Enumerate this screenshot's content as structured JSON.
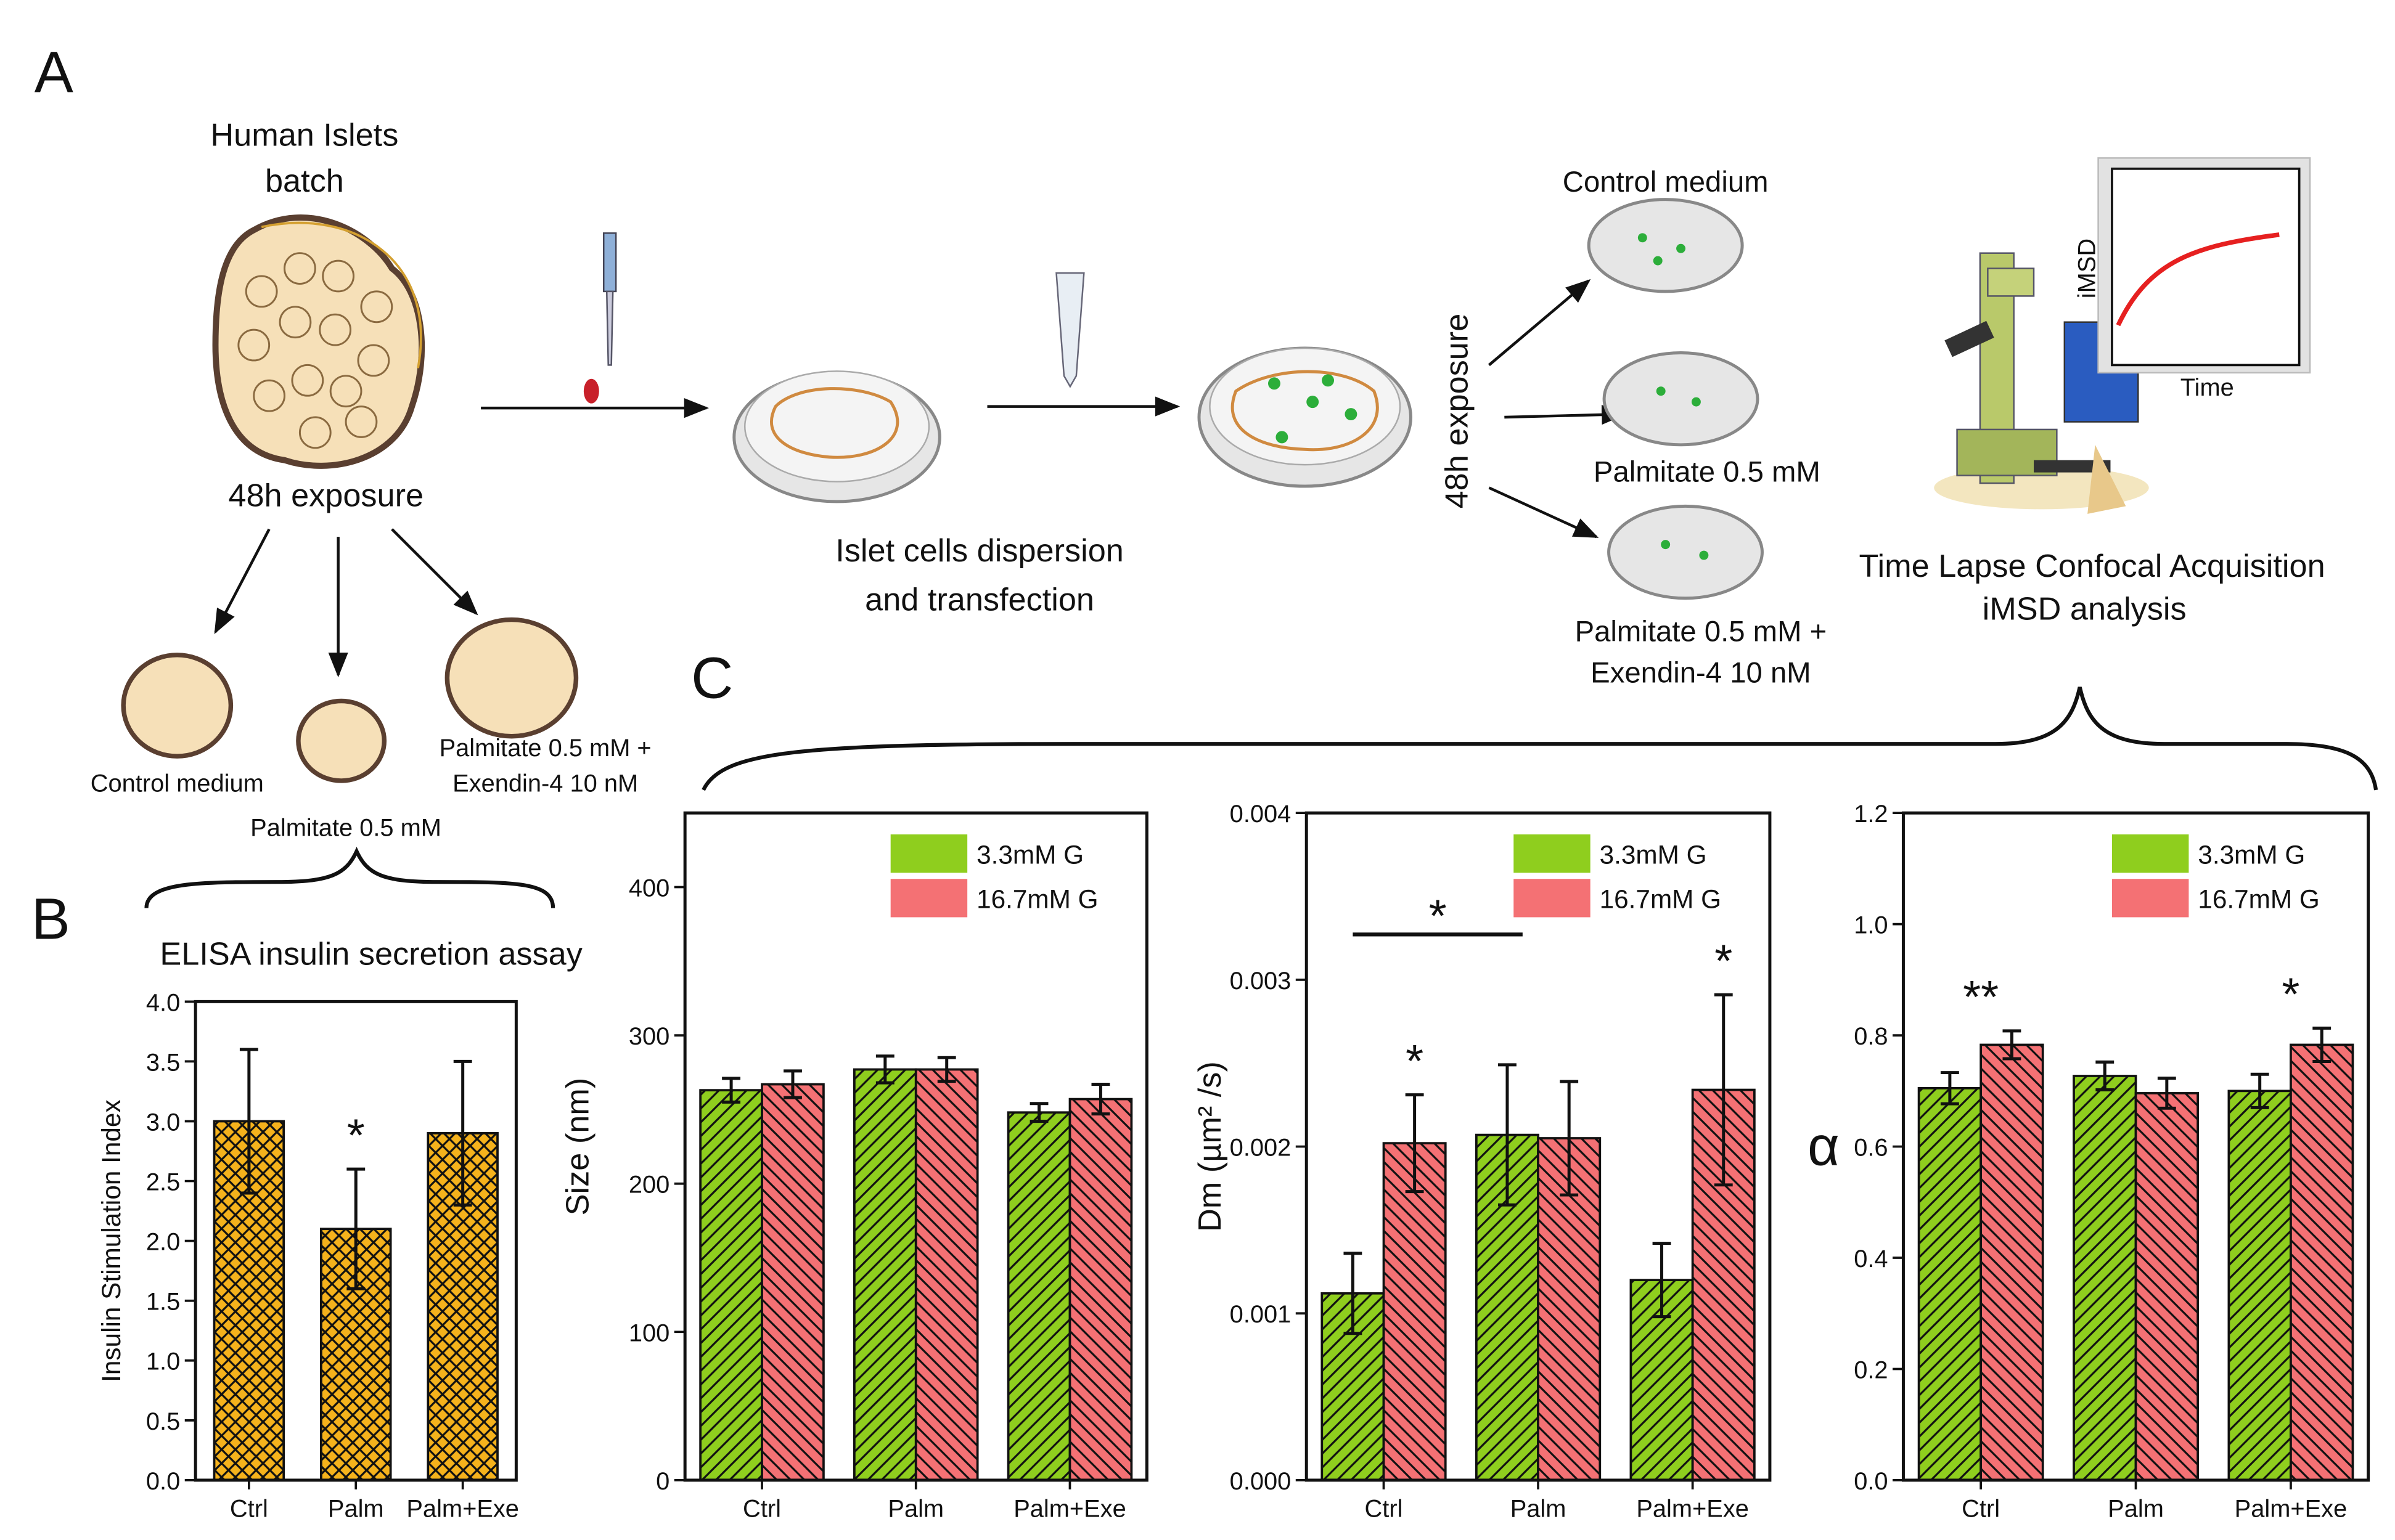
{
  "panel_labels": [
    "A",
    "B",
    "C"
  ],
  "diagram": {
    "batch_title": [
      "Human Islets",
      "batch"
    ],
    "exposure": "48h exposure",
    "islet_control": "Control medium",
    "islet_palm": "Palmitate 0.5 mM",
    "islet_palm_exe": [
      "Palmitate 0.5 mM +",
      "Exendin-4 10 nM"
    ],
    "dispersion": [
      "Islet cells dispersion",
      "and transfection"
    ],
    "exposure2": "48h exposure",
    "dish_control": "Control medium",
    "dish_palm": "Palmitate 0.5 mM",
    "dish_palm_exe": [
      "Palmitate 0.5 mM +",
      "Exendin-4 10 nM"
    ],
    "acquisition": [
      "Time Lapse Confocal Acquisition",
      "iMSD analysis"
    ],
    "inset_ylabel": "iMSD",
    "inset_xlabel": "Time"
  },
  "chart_data": [
    {
      "type": "bar",
      "title": "ELISA insulin secretion assay",
      "ylabel": "Insulin Stimulation Index",
      "categories": [
        "Ctrl",
        "Palm",
        "Palm+Exe"
      ],
      "values": [
        3.0,
        2.1,
        2.9
      ],
      "errors": [
        0.6,
        0.5,
        0.6
      ],
      "color": "#f5b21c",
      "hatch": "xx",
      "ylim": [
        0,
        4
      ],
      "yticks": [
        {
          "value": 0,
          "label": "0.0"
        },
        0.5,
        {
          "value": 1,
          "label": "1.0"
        },
        1.5,
        {
          "value": 2,
          "label": "2.0"
        },
        2.5,
        {
          "value": 3,
          "label": "3.0"
        },
        3.5,
        {
          "value": 4,
          "label": "4.0"
        }
      ],
      "annotations": [
        {
          "text": "*",
          "category": 1
        }
      ]
    },
    {
      "type": "bar",
      "ylabel": "Size (nm)",
      "categories": [
        "Ctrl",
        "Palm",
        "Palm+Exe"
      ],
      "series": [
        {
          "name": "3.3mM G",
          "color": "#8fce1e",
          "hatch": "//",
          "values": [
            263,
            277,
            248
          ],
          "errors": [
            8,
            9,
            6
          ]
        },
        {
          "name": "16.7mM G",
          "color": "#f47174",
          "hatch": "\\\\",
          "values": [
            267,
            277,
            257
          ],
          "errors": [
            9,
            8,
            10
          ]
        }
      ],
      "ylim": [
        0,
        450
      ],
      "yticks": [
        0,
        100,
        200,
        300,
        400
      ],
      "legend": "upper right",
      "annotations": []
    },
    {
      "type": "bar",
      "ylabel": "Dm (µm² /s)",
      "categories": [
        "Ctrl",
        "Palm",
        "Palm+Exe"
      ],
      "series": [
        {
          "name": "3.3mM G",
          "color": "#8fce1e",
          "hatch": "//",
          "values": [
            0.00112,
            0.00207,
            0.0012
          ],
          "errors": [
            0.00024,
            0.00042,
            0.00022
          ]
        },
        {
          "name": "16.7mM G",
          "color": "#f47174",
          "hatch": "\\\\",
          "values": [
            0.00202,
            0.00205,
            0.00234
          ],
          "errors": [
            0.00029,
            0.00034,
            0.00057
          ]
        }
      ],
      "ylim": [
        0,
        0.004
      ],
      "yticks": [
        {
          "value": 0,
          "label": "0.000"
        },
        0.001,
        0.002,
        0.003,
        0.004
      ],
      "legend": "upper right",
      "annotations": [
        {
          "text": "*",
          "category": 0,
          "series": 1
        },
        {
          "text": "*",
          "span": [
            0,
            1
          ]
        },
        {
          "text": "*",
          "category": 2,
          "series": 1
        }
      ]
    },
    {
      "type": "bar",
      "ylabel": "α",
      "categories": [
        "Ctrl",
        "Palm",
        "Palm+Exe"
      ],
      "series": [
        {
          "name": "3.3mM G",
          "color": "#8fce1e",
          "hatch": "//",
          "values": [
            0.705,
            0.727,
            0.7
          ],
          "errors": [
            0.028,
            0.025,
            0.03
          ]
        },
        {
          "name": "16.7mM G",
          "color": "#f47174",
          "hatch": "\\\\",
          "values": [
            0.783,
            0.696,
            0.783
          ],
          "errors": [
            0.025,
            0.027,
            0.03
          ]
        }
      ],
      "ylim": [
        0,
        1.2
      ],
      "yticks": [
        {
          "value": 0,
          "label": "0.0"
        },
        0.2,
        0.4,
        0.6,
        0.8,
        {
          "value": 1,
          "label": "1.0"
        },
        1.2
      ],
      "legend": "upper right",
      "annotations": [
        {
          "text": "**",
          "category": 0
        },
        {
          "text": "*",
          "category": 2
        }
      ]
    }
  ]
}
